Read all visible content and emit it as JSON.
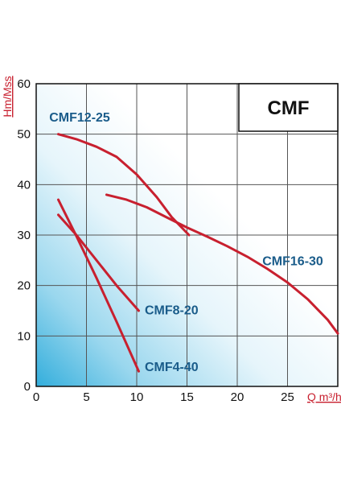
{
  "chart_data": {
    "type": "line",
    "title": "CMF",
    "xlabel": "Q m³/h",
    "ylabel": "Hm/Mss",
    "xlim": [
      0,
      30
    ],
    "ylim": [
      0,
      60
    ],
    "xticks": [
      0,
      5,
      10,
      15,
      20,
      25
    ],
    "yticks": [
      0,
      10,
      20,
      30,
      40,
      50,
      60
    ],
    "grid": true,
    "legend": "inline labels",
    "line_color": "#c8202f",
    "label_color": "#1a5c8a",
    "series": [
      {
        "name": "CMF12-25",
        "x": [
          2.2,
          4,
          6,
          8,
          10,
          12,
          13.5,
          15.2
        ],
        "y": [
          50,
          49,
          47.5,
          45.5,
          42,
          37.5,
          33.5,
          30
        ]
      },
      {
        "name": "CMF16-30",
        "x": [
          7,
          9,
          11,
          13,
          15,
          17,
          19,
          21,
          23,
          25,
          27,
          29,
          30
        ],
        "y": [
          38,
          37,
          35.5,
          33.5,
          31.5,
          29.7,
          27.8,
          25.7,
          23.3,
          20.6,
          17.3,
          13.2,
          10.5
        ]
      },
      {
        "name": "CMF8-20",
        "x": [
          2.2,
          4,
          6,
          8,
          10.2
        ],
        "y": [
          34,
          30,
          25,
          20,
          15
        ]
      },
      {
        "name": "CMF4-40",
        "x": [
          2.2,
          4,
          6,
          8,
          10.2
        ],
        "y": [
          37,
          29.8,
          21.5,
          12.8,
          3
        ]
      }
    ],
    "annotations": [
      {
        "text": "CMF12-25",
        "x": 1.3,
        "y": 52.5
      },
      {
        "text": "CMF16-30",
        "x": 22.5,
        "y": 24
      },
      {
        "text": "CMF8-20",
        "x": 10.8,
        "y": 14.3
      },
      {
        "text": "CMF4-40",
        "x": 10.8,
        "y": 3
      }
    ]
  }
}
